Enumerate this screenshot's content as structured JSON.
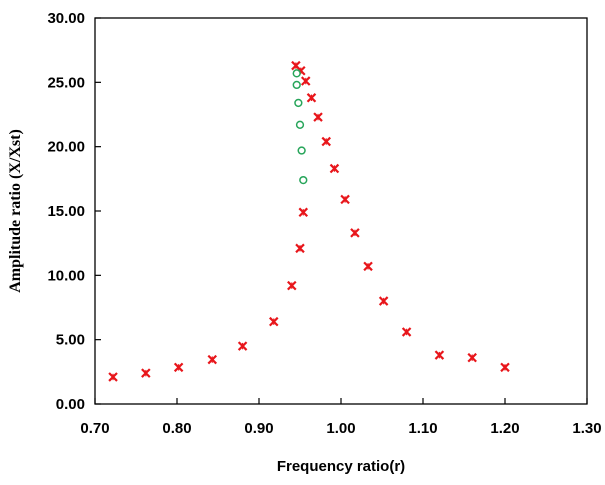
{
  "chart_data": {
    "type": "scatter",
    "title": "",
    "xlabel": "Frequency ratio(r)",
    "ylabel": "Amplitude ratio (X/Xst)",
    "xlim": [
      0.7,
      1.3
    ],
    "ylim": [
      0,
      30
    ],
    "x_ticks": [
      "0.70",
      "0.80",
      "0.90",
      "1.00",
      "1.10",
      "1.20",
      "1.30"
    ],
    "y_ticks": [
      "0.00",
      "5.00",
      "10.00",
      "15.00",
      "20.00",
      "25.00",
      "30.00"
    ],
    "x_tick_values": [
      0.7,
      0.8,
      0.9,
      1.0,
      1.1,
      1.2,
      1.3
    ],
    "y_tick_values": [
      0,
      5,
      10,
      15,
      20,
      25,
      30
    ],
    "grid": false,
    "legend": "none",
    "series": [
      {
        "marker": "x-cross",
        "color": "#e8161b",
        "points": [
          [
            0.722,
            2.1
          ],
          [
            0.762,
            2.4
          ],
          [
            0.802,
            2.85
          ],
          [
            0.843,
            3.45
          ],
          [
            0.88,
            4.5
          ],
          [
            0.918,
            6.4
          ],
          [
            0.94,
            9.2
          ],
          [
            0.95,
            12.1
          ],
          [
            0.954,
            14.9
          ],
          [
            0.945,
            26.3
          ],
          [
            0.951,
            25.9
          ],
          [
            0.957,
            25.1
          ],
          [
            0.964,
            23.8
          ],
          [
            0.972,
            22.3
          ],
          [
            0.982,
            20.4
          ],
          [
            0.992,
            18.3
          ],
          [
            1.005,
            15.9
          ],
          [
            1.017,
            13.3
          ],
          [
            1.033,
            10.7
          ],
          [
            1.052,
            8.0
          ],
          [
            1.08,
            5.6
          ],
          [
            1.12,
            3.8
          ],
          [
            1.16,
            3.6
          ],
          [
            1.2,
            2.85
          ]
        ]
      },
      {
        "marker": "circle-open",
        "color": "#27a55a",
        "points": [
          [
            0.946,
            25.7
          ],
          [
            0.946,
            24.8
          ],
          [
            0.948,
            23.4
          ],
          [
            0.95,
            21.7
          ],
          [
            0.952,
            19.7
          ],
          [
            0.954,
            17.4
          ]
        ]
      }
    ]
  }
}
